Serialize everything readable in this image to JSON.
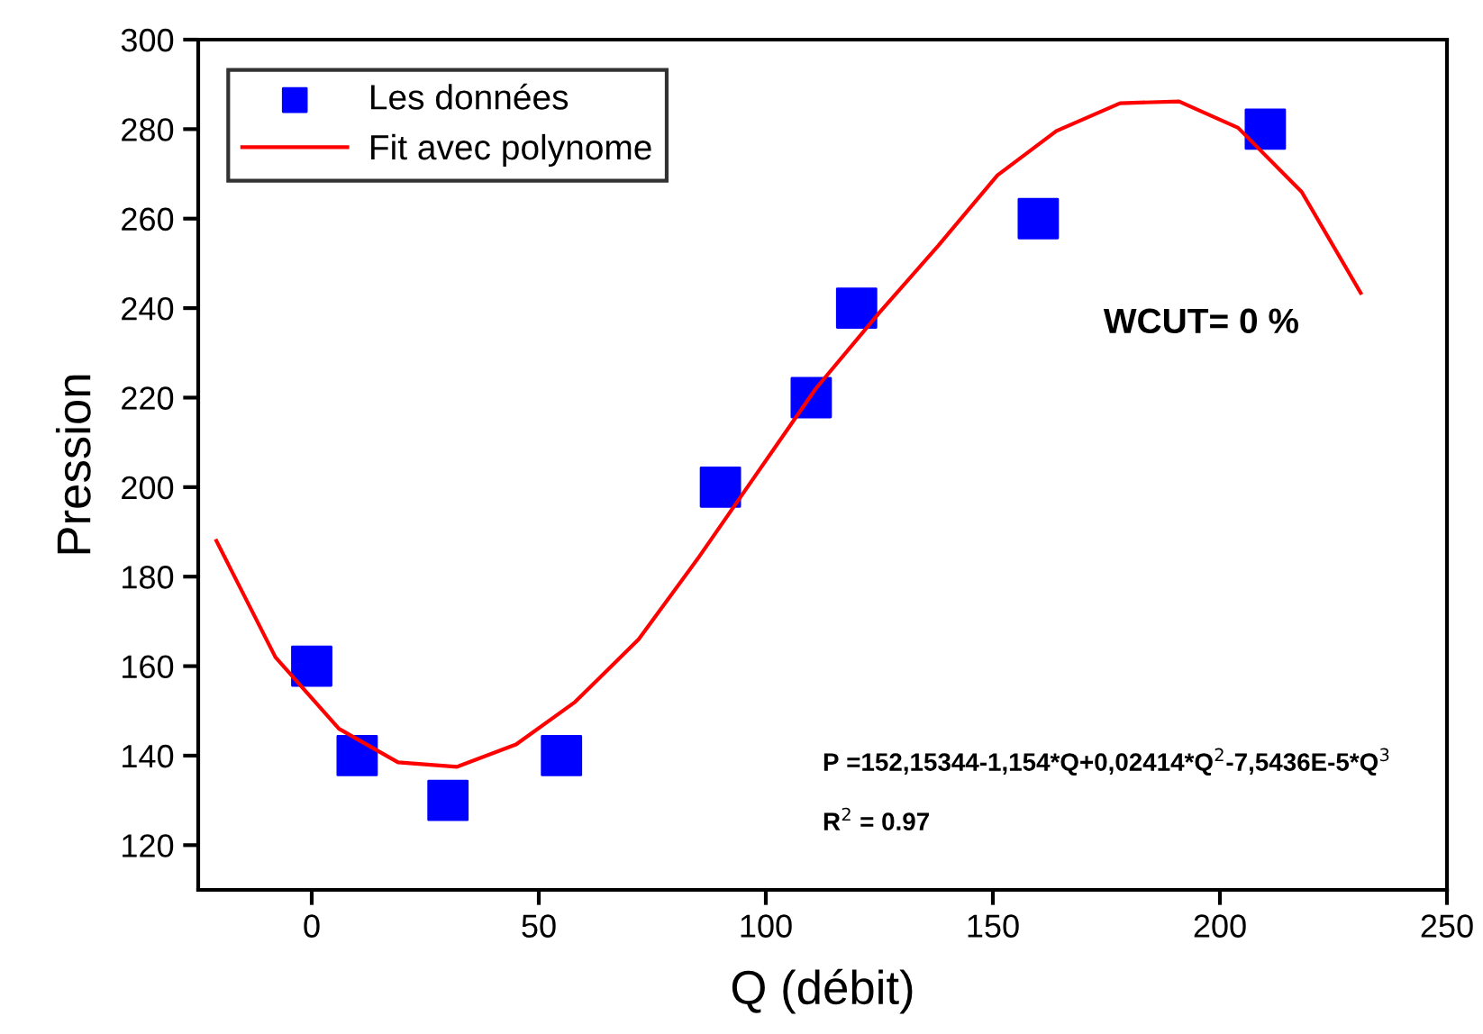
{
  "chart_data": {
    "type": "scatter",
    "xlabel": "Q (débit)",
    "ylabel": "Pression",
    "xlim": [
      -25,
      250
    ],
    "xticks": [
      0,
      50,
      100,
      150,
      200,
      250
    ],
    "ylim": [
      110,
      300
    ],
    "yticks": [
      120,
      140,
      160,
      180,
      200,
      220,
      240,
      260,
      280,
      300
    ],
    "grid": false,
    "legend": "top left",
    "series": [
      {
        "name": "Les données",
        "marker": "square",
        "color": "#0000ff",
        "x": [
          0,
          10,
          30,
          55,
          90,
          110,
          120,
          160,
          210
        ],
        "values": [
          160,
          140,
          130,
          140,
          200,
          220,
          240,
          260,
          280
        ]
      },
      {
        "name": "Fit avec polynome",
        "type": "line",
        "marker": "none",
        "line_style": "solid",
        "color": "#ff0000",
        "x": [
          -21,
          -8,
          6,
          19,
          32,
          45,
          58,
          72,
          85,
          98,
          111,
          125,
          138,
          151,
          164,
          178,
          191,
          204,
          218,
          231
        ],
        "values": [
          188,
          162,
          146,
          138.5,
          137.5,
          142.5,
          152,
          166,
          184,
          203,
          222,
          239,
          254,
          269.7,
          279.6,
          285.8,
          286.2,
          280.3,
          266,
          243.4
        ]
      }
    ],
    "annotations": [
      "WCUT= 0 %",
      "P =152,15344-1,154*Q+0,02414*Q$^{2}$-7,5436E-5*Q$^{3}$",
      "R$^{2}$ = 0.97"
    ]
  }
}
